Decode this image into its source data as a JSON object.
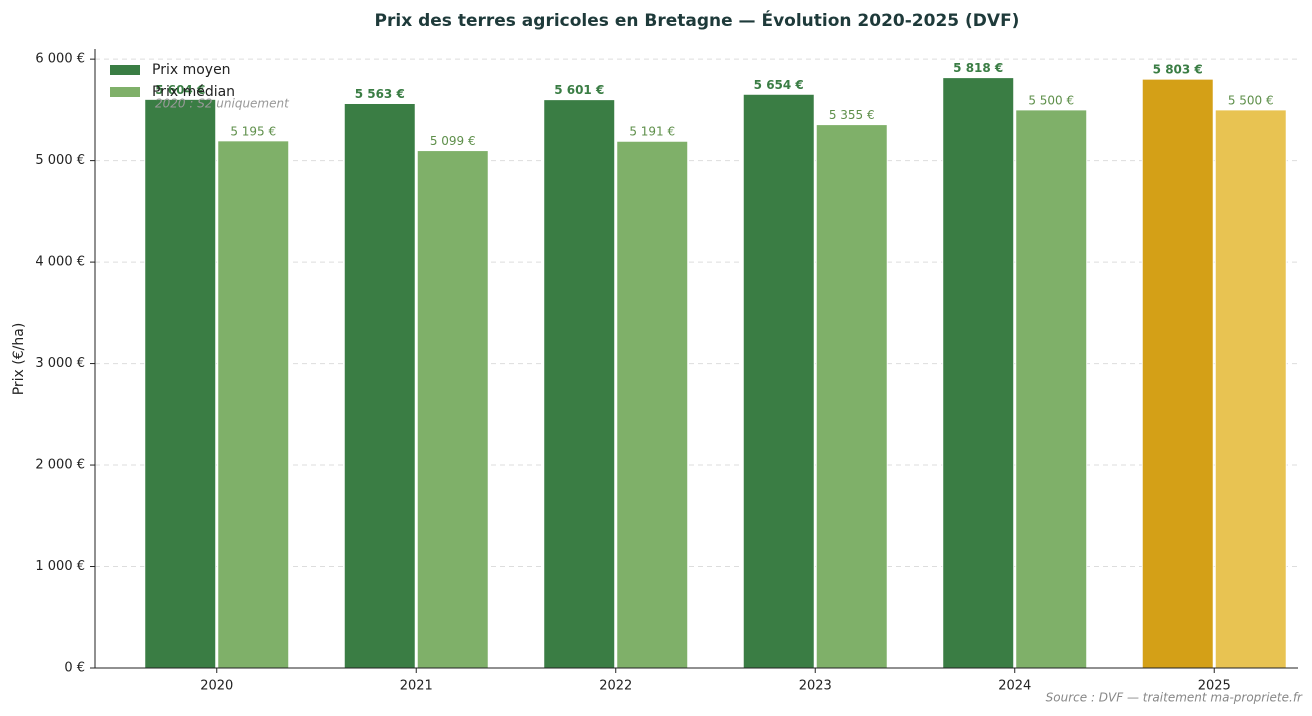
{
  "chart_data": {
    "type": "bar",
    "title": "Prix des terres agricoles en Bretagne — Évolution 2020-2025 (DVF)",
    "y_label": "Prix (€/ha)",
    "annotation": "2020 : S2 uniquement",
    "source": "Source : DVF — traitement ma-propriete.fr",
    "categories": [
      "2020",
      "2021",
      "2022",
      "2023",
      "2024",
      "2025"
    ],
    "series": [
      {
        "name": "Prix moyen",
        "color": "#3a7d44",
        "colors": [
          "#3a7d44",
          "#3a7d44",
          "#3a7d44",
          "#3a7d44",
          "#3a7d44",
          "#d4a017"
        ],
        "values": [
          5604,
          5563,
          5601,
          5654,
          5818,
          5803
        ],
        "value_labels": [
          "5 604 €",
          "5 563 €",
          "5 601 €",
          "5 654 €",
          "5 818 €",
          "5 803 €"
        ]
      },
      {
        "name": "Prix médian",
        "color": "#7fb069",
        "colors": [
          "#7fb069",
          "#7fb069",
          "#7fb069",
          "#7fb069",
          "#7fb069",
          "#e8c352"
        ],
        "values": [
          5195,
          5099,
          5191,
          5355,
          5500,
          5500
        ],
        "value_labels": [
          "5 195 €",
          "5 099 €",
          "5 191 €",
          "5 355 €",
          "5 500 €",
          "5 500 €"
        ]
      }
    ],
    "ylim": [
      0,
      6100
    ],
    "yticks": [
      {
        "value": 0,
        "label": "0 €"
      },
      {
        "value": 1000,
        "label": "1 000 €"
      },
      {
        "value": 2000,
        "label": "2 000 €"
      },
      {
        "value": 3000,
        "label": "3 000 €"
      },
      {
        "value": 4000,
        "label": "4 000 €"
      },
      {
        "value": 5000,
        "label": "5 000 €"
      },
      {
        "value": 6000,
        "label": "6 000 €"
      }
    ],
    "grid": true,
    "legend": "upper left"
  }
}
